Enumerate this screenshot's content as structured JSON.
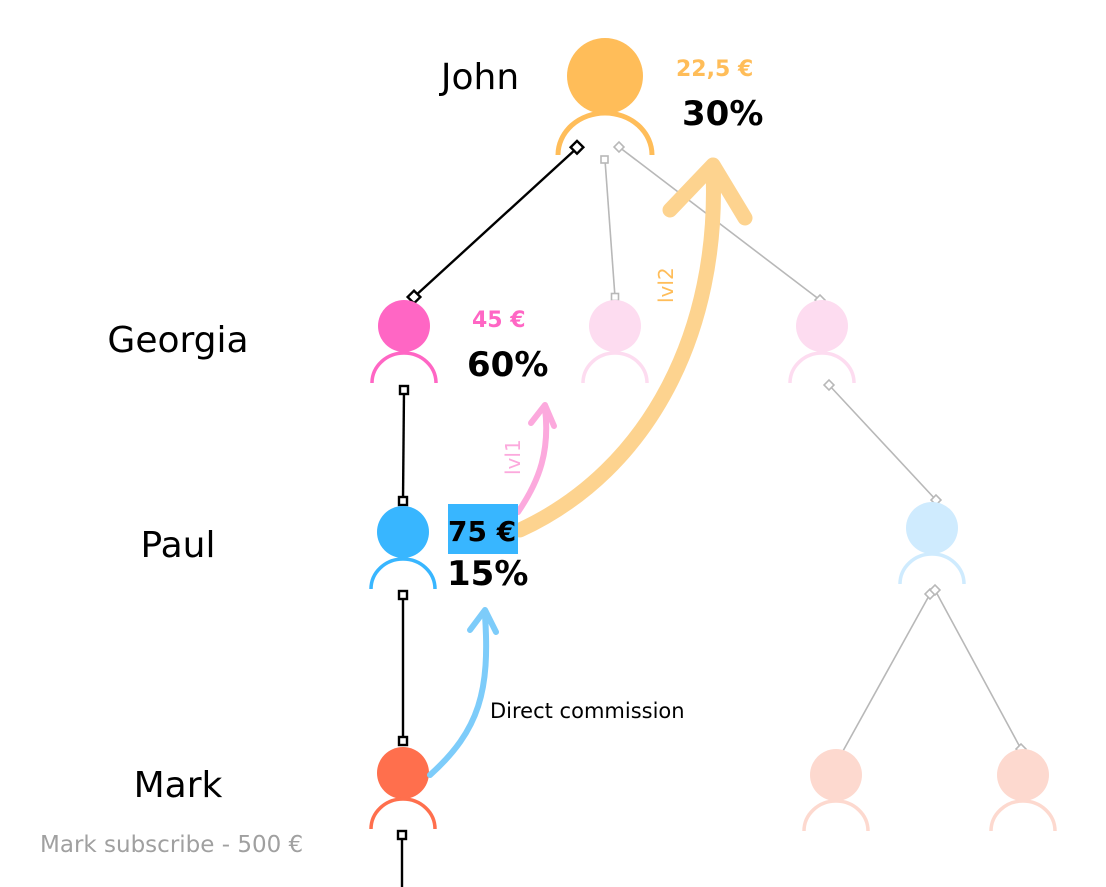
{
  "names": {
    "john": "John",
    "georgia": "Georgia",
    "paul": "Paul",
    "mark": "Mark"
  },
  "commissions": {
    "john": {
      "amount": "22,5 €",
      "percent": "30%"
    },
    "georgia": {
      "amount": "45 €",
      "percent": "60%"
    },
    "paul": {
      "amount": "75 €",
      "percent": "15%"
    }
  },
  "arrow_labels": {
    "direct": "Direct commission",
    "level1": "lvl1",
    "level2": "lvl2"
  },
  "footer": "Mark subscribe - 500 €",
  "colors": {
    "john": "#ffbd59",
    "georgia": "#ff66c4",
    "paul": "#38b6ff",
    "mark": "#ff6f4d",
    "faded_pink": "#fddcf0",
    "faded_blue": "#cfebfe",
    "faded_orange": "#fdd9cf",
    "connector_gray": "#b5b5b5"
  }
}
